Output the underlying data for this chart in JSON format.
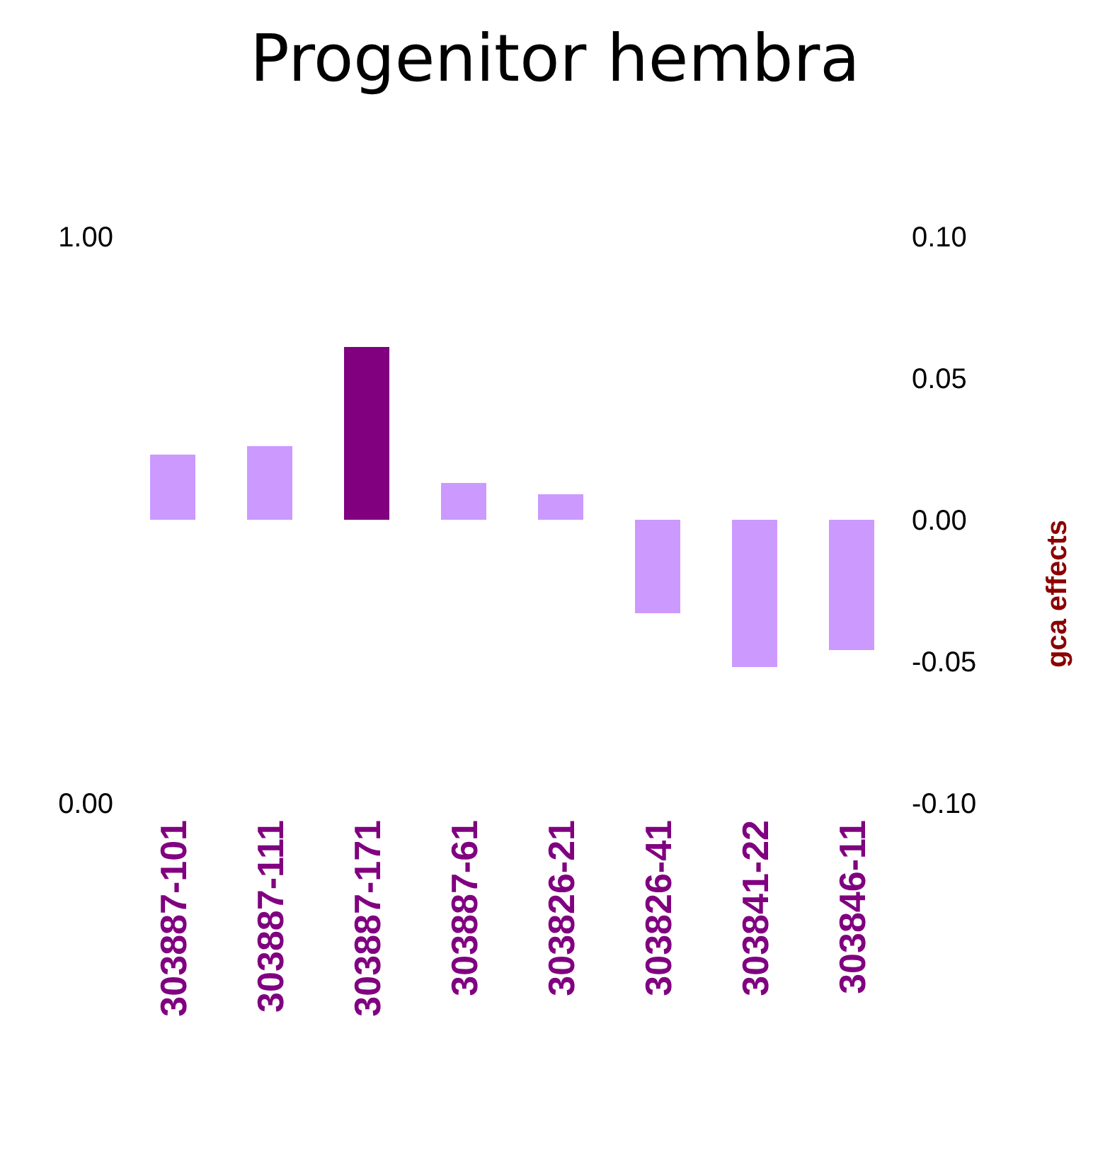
{
  "chart_data": {
    "type": "bar",
    "title": "Progenitor hembra",
    "y2label": "gca effects",
    "categories": [
      "303887-101",
      "303887-111",
      "303887-171",
      "303887-61",
      "303826-21",
      "303826-41",
      "303841-22",
      "303846-11"
    ],
    "series": [
      {
        "axis": "y2",
        "values": [
          0.023,
          0.026,
          0.061,
          0.013,
          0.009,
          -0.033,
          -0.052,
          -0.046
        ],
        "colors": [
          "#cc99ff",
          "#cc99ff",
          "#800080",
          "#cc99ff",
          "#cc99ff",
          "#cc99ff",
          "#cc99ff",
          "#cc99ff"
        ]
      }
    ],
    "ylim": [
      0,
      1
    ],
    "yticks": [
      {
        "value": 0,
        "label": "0.00"
      },
      {
        "value": 1,
        "label": "1.00"
      }
    ],
    "y2lim": [
      -0.1,
      0.1
    ],
    "y2ticks": [
      {
        "value": -0.1,
        "label": "-0.10"
      },
      {
        "value": -0.05,
        "label": "-0.05"
      },
      {
        "value": 0,
        "label": "0.00"
      },
      {
        "value": 0.05,
        "label": "0.05"
      },
      {
        "value": 0.1,
        "label": "0.10"
      }
    ],
    "grid": false,
    "legend": false
  }
}
